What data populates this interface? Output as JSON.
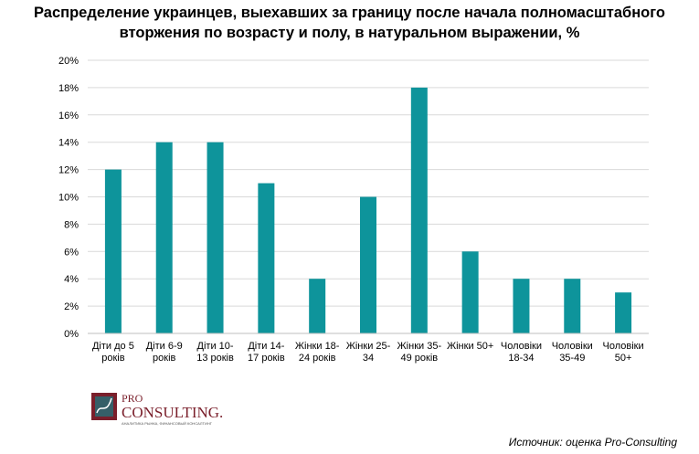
{
  "header": {
    "title_line1": "Распределение украинцев, выехавших за границу после начала полномасштабного",
    "title_line2": "вторжения по возрасту и полу, в натуральном выражении, %"
  },
  "logo": {
    "pro": "PRO",
    "consulting": "CONSULTING.",
    "tagline": "АНАЛИТИКА РЫНКА, ФИНАНСОВЫЙ КОНСАЛТИНГ"
  },
  "footer": {
    "source": "Источник: оценка Pro-Consulting"
  },
  "colors": {
    "bar": "#0e949b",
    "grid": "#d9d9d9",
    "axis": "#bfbfbf"
  },
  "chart_data": {
    "type": "bar",
    "categories": [
      [
        "Діти до 5",
        "років"
      ],
      [
        "Діти 6-9",
        "років"
      ],
      [
        "Діти 10-",
        "13 років"
      ],
      [
        "Діти 14-",
        "17 років"
      ],
      [
        "Жінки 18-",
        "24 років"
      ],
      [
        "Жінки 25-",
        "34"
      ],
      [
        "Жінки 35-",
        "49 років"
      ],
      [
        "Жінки 50+"
      ],
      [
        "Чоловіки",
        "18-34"
      ],
      [
        "Чоловіки",
        "35-49"
      ],
      [
        "Чоловіки",
        "50+"
      ]
    ],
    "values": [
      12,
      14,
      14,
      11,
      4,
      10,
      18,
      6,
      4,
      4,
      3
    ],
    "ylim": [
      0,
      20
    ],
    "ytick_step": 2,
    "ytick_labels": [
      "0%",
      "2%",
      "4%",
      "6%",
      "8%",
      "10%",
      "12%",
      "14%",
      "16%",
      "18%",
      "20%"
    ],
    "grid": true,
    "legend": "none"
  }
}
